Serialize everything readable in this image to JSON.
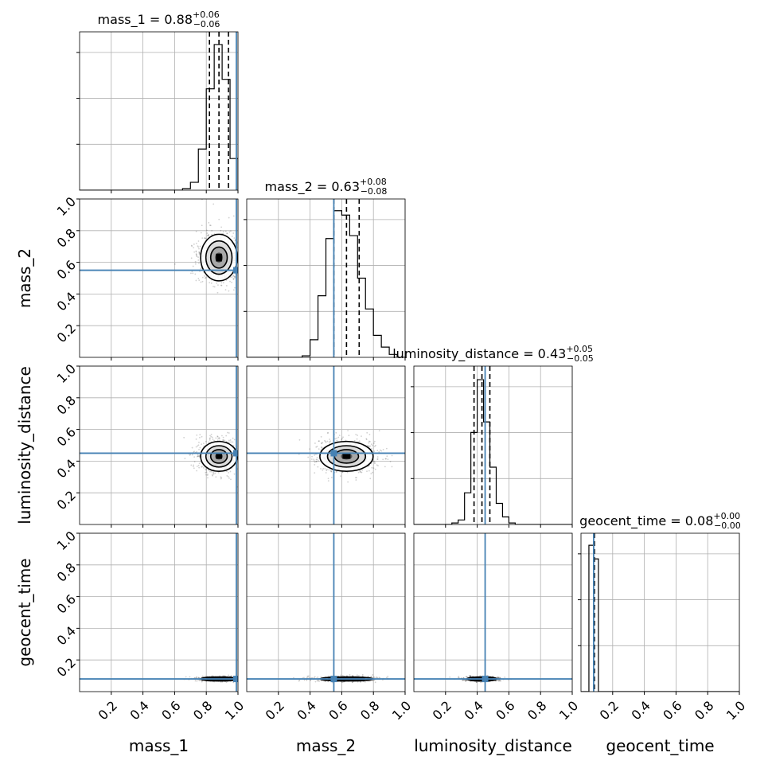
{
  "chart_data": {
    "type": "corner",
    "parameters": [
      "mass_1",
      "mass_2",
      "luminosity_distance",
      "geocent_time"
    ],
    "axis_range": [
      0,
      1
    ],
    "tick_values": [
      0.2,
      0.4,
      0.6,
      0.8,
      1.0
    ],
    "tick_labels": [
      "0.2",
      "0.4",
      "0.6",
      "0.8",
      "1.0"
    ],
    "grid": true,
    "colors": {
      "truth": "#4682b4",
      "hist": "#000000",
      "grid": "#b0b0b0"
    },
    "truths": [
      0.99,
      0.55,
      0.45,
      0.08
    ],
    "titles": [
      {
        "param": "mass_1",
        "label": "mass_1 = 0.88",
        "plus": "+0.06",
        "minus": "−0.06"
      },
      {
        "param": "mass_2",
        "label": "mass_2 = 0.63",
        "plus": "+0.08",
        "minus": "−0.08"
      },
      {
        "param": "luminosity_distance",
        "label": "luminosity_distance = 0.43",
        "plus": "+0.05",
        "minus": "−0.05"
      },
      {
        "param": "geocent_time",
        "label": "geocent_time = 0.08",
        "plus": "+0.00",
        "minus": "−0.00"
      }
    ],
    "marginals": [
      {
        "param": "mass_1",
        "bin_width": 0.05,
        "ymax": 1.0,
        "bins": [
          [
            0.65,
            0.01
          ],
          [
            0.7,
            0.05
          ],
          [
            0.75,
            0.26
          ],
          [
            0.8,
            0.64
          ],
          [
            0.85,
            0.92
          ],
          [
            0.9,
            0.7
          ],
          [
            0.95,
            0.2
          ]
        ],
        "quantiles": [
          0.82,
          0.88,
          0.94
        ]
      },
      {
        "param": "mass_2",
        "bin_width": 0.05,
        "ymax": 1.08,
        "bins": [
          [
            0.35,
            0.01
          ],
          [
            0.4,
            0.12
          ],
          [
            0.45,
            0.42
          ],
          [
            0.5,
            0.81
          ],
          [
            0.55,
            1.0
          ],
          [
            0.6,
            0.97
          ],
          [
            0.65,
            0.83
          ],
          [
            0.7,
            0.54
          ],
          [
            0.75,
            0.33
          ],
          [
            0.8,
            0.15
          ],
          [
            0.85,
            0.07
          ],
          [
            0.9,
            0.02
          ]
        ],
        "quantiles": [
          0.55,
          0.63,
          0.71
        ]
      },
      {
        "param": "luminosity_distance",
        "bin_width": 0.04,
        "ymax": 1.05,
        "bins": [
          [
            0.24,
            0.01
          ],
          [
            0.28,
            0.03
          ],
          [
            0.32,
            0.21
          ],
          [
            0.36,
            0.61
          ],
          [
            0.4,
            0.96
          ],
          [
            0.44,
            0.68
          ],
          [
            0.48,
            0.38
          ],
          [
            0.52,
            0.14
          ],
          [
            0.56,
            0.05
          ],
          [
            0.6,
            0.01
          ]
        ],
        "quantiles": [
          0.38,
          0.43,
          0.48
        ]
      },
      {
        "param": "geocent_time",
        "bin_width": 0.03,
        "ymax": 1.05,
        "bins": [
          [
            0.05,
            0.97
          ],
          [
            0.08,
            0.88
          ]
        ],
        "quantiles": [
          0.08,
          0.08,
          0.085
        ]
      }
    ],
    "pair_density": [
      {
        "x": "mass_1",
        "y": "mass_2",
        "mean": [
          0.88,
          0.63
        ],
        "sd": [
          0.055,
          0.07
        ]
      },
      {
        "x": "mass_1",
        "y": "luminosity_distance",
        "mean": [
          0.88,
          0.43
        ],
        "sd": [
          0.055,
          0.045
        ]
      },
      {
        "x": "mass_2",
        "y": "luminosity_distance",
        "mean": [
          0.63,
          0.43
        ],
        "sd": [
          0.08,
          0.045
        ]
      },
      {
        "x": "mass_1",
        "y": "geocent_time",
        "mean": [
          0.88,
          0.08
        ],
        "sd": [
          0.055,
          0.005
        ]
      },
      {
        "x": "mass_2",
        "y": "geocent_time",
        "mean": [
          0.63,
          0.08
        ],
        "sd": [
          0.08,
          0.005
        ]
      },
      {
        "x": "luminosity_distance",
        "y": "geocent_time",
        "mean": [
          0.43,
          0.08
        ],
        "sd": [
          0.045,
          0.005
        ]
      }
    ]
  }
}
